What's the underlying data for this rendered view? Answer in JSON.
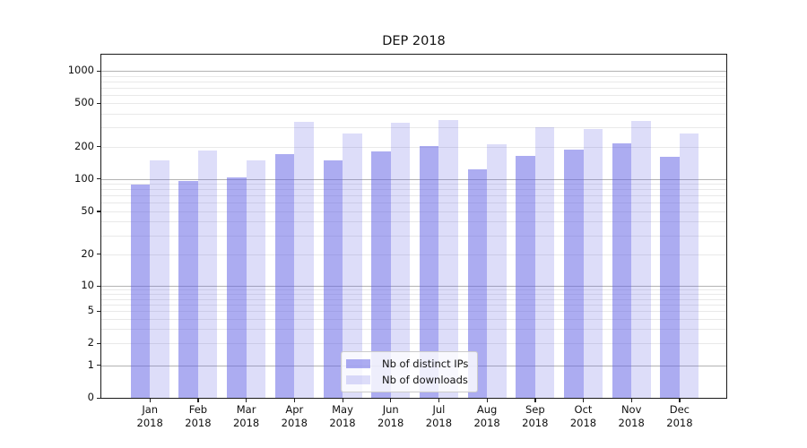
{
  "chart_data": {
    "type": "bar",
    "title": "DEP 2018",
    "categories": [
      "Jan",
      "Feb",
      "Mar",
      "Apr",
      "May",
      "Jun",
      "Jul",
      "Aug",
      "Sep",
      "Oct",
      "Nov",
      "Dec"
    ],
    "category_year": "2018",
    "series": [
      {
        "name": "Nb of distinct IPs",
        "color": "#5f5fe4",
        "alpha": 0.52,
        "values": [
          89,
          95,
          103,
          172,
          150,
          181,
          204,
          123,
          164,
          186,
          213,
          160
        ]
      },
      {
        "name": "Nb of downloads",
        "color": "#5f5fe4",
        "alpha": 0.21,
        "values": [
          150,
          185,
          148,
          335,
          262,
          330,
          352,
          209,
          302,
          289,
          345,
          262
        ]
      }
    ],
    "yscale": "symlog",
    "ylim": [
      0,
      1400
    ],
    "yticks": [
      1000,
      500,
      200,
      100,
      50,
      20,
      10,
      5,
      2,
      1,
      0
    ],
    "major_gridlines": [
      1,
      10,
      100,
      1000
    ],
    "minor_gridlines": [
      2,
      3,
      4,
      5,
      6,
      7,
      8,
      9,
      20,
      30,
      40,
      50,
      60,
      70,
      80,
      90,
      200,
      300,
      400,
      500,
      600,
      700,
      800,
      900
    ],
    "grid": true,
    "legend_position": "lower-center-inside"
  }
}
